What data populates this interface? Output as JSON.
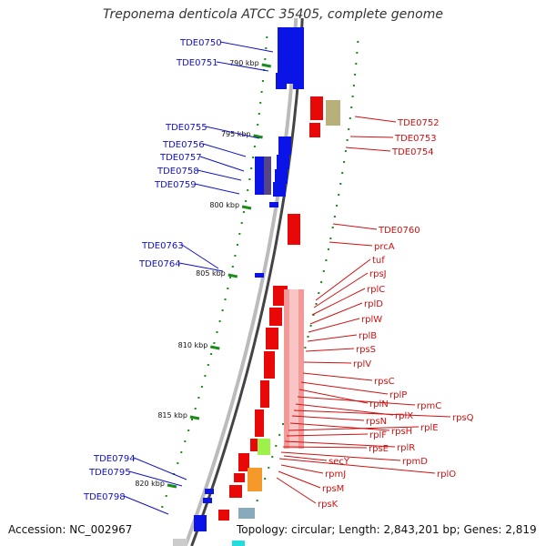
{
  "title": "Treponema denticola ATCC 35405, complete genome",
  "footer": {
    "accession": "Accession: NC_002967",
    "topology": "Topology: circular; Length: 2,843,201 bp; Genes: 2,819"
  },
  "colors": {
    "blue_label": "#1010c8",
    "red_label": "#d01010",
    "gene_blue": "#0a14e6",
    "gene_red": "#e80808",
    "tick": "#1a8c1a"
  },
  "kbp_markers": [
    "790 kbp",
    "795 kbp",
    "800 kbp",
    "805 kbp",
    "810 kbp",
    "815 kbp",
    "820 kbp"
  ],
  "blue_genes": [
    "TDE0750",
    "TDE0751",
    "TDE0755",
    "TDE0756",
    "TDE0757",
    "TDE0758",
    "TDE0759",
    "TDE0763",
    "TDE0764",
    "TDE0794",
    "TDE0795",
    "TDE0798"
  ],
  "red_genes": [
    "TDE0752",
    "TDE0753",
    "TDE0754",
    "TDE0760",
    "prcA",
    "tuf",
    "rpsJ",
    "rplC",
    "rplD",
    "rplW",
    "rplB",
    "rpsS",
    "rplV",
    "rpsC",
    "rplP",
    "rplN",
    "rpmC",
    "rplX",
    "rpsQ",
    "rpsN",
    "rpsH",
    "rplE",
    "rplF",
    "rplR",
    "rpsE",
    "rpmD",
    "rplO",
    "secY",
    "rpmJ",
    "rpsM",
    "rpsK"
  ]
}
